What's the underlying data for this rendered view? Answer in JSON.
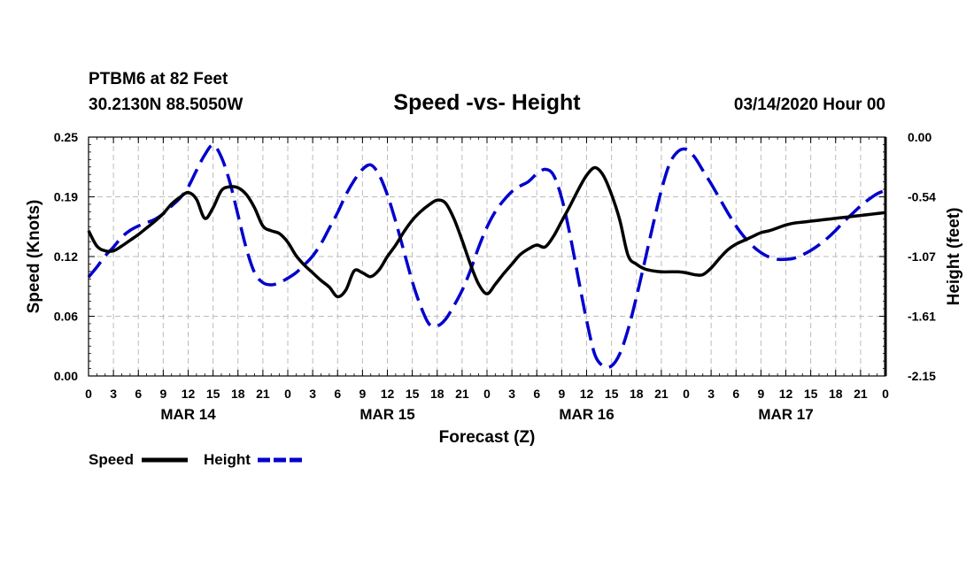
{
  "header": {
    "station": "PTBM6 at 82 Feet",
    "coords": "30.2130N 88.5050W",
    "title": "Speed -vs- Height",
    "datetime": "03/14/2020 Hour 00"
  },
  "chart_data": {
    "type": "line",
    "title": "Speed -vs- Height",
    "xlabel": "Forecast (Z)",
    "ylabel": "Speed (Knots)",
    "y2label": "Height (feet)",
    "x_ticks": [
      "0",
      "3",
      "6",
      "9",
      "12",
      "15",
      "18",
      "21",
      "0",
      "3",
      "6",
      "9",
      "12",
      "15",
      "18",
      "21",
      "0",
      "3",
      "6",
      "9",
      "12",
      "15",
      "18",
      "21",
      "0",
      "3",
      "6",
      "9",
      "12",
      "15",
      "18",
      "21",
      "0"
    ],
    "day_labels": [
      {
        "label": "MAR 14",
        "hour": 12
      },
      {
        "label": "MAR 15",
        "hour": 36
      },
      {
        "label": "MAR 16",
        "hour": 60
      },
      {
        "label": "MAR 17",
        "hour": 84
      }
    ],
    "xlim": [
      0,
      96
    ],
    "ylim": [
      0,
      0.25
    ],
    "y_ticks": [
      "0.00",
      "0.06",
      "0.12",
      "0.19",
      "0.25"
    ],
    "y2lim": [
      -2.15,
      0.0
    ],
    "y2_ticks": [
      "-2.15",
      "-1.61",
      "-1.07",
      "-0.54",
      "0.00"
    ],
    "grid": true,
    "legend": "bottom-left",
    "series": [
      {
        "name": "Speed",
        "axis": "left",
        "color": "#000000",
        "style": "solid",
        "x": [
          0,
          1,
          2,
          3,
          4,
          5,
          6,
          7,
          8,
          9,
          10,
          11,
          12,
          13,
          14,
          15,
          16,
          17,
          18,
          19,
          20,
          21,
          22,
          23,
          24,
          25,
          26,
          27,
          28,
          29,
          30,
          31,
          32,
          33,
          34,
          35,
          36,
          37,
          38,
          39,
          40,
          41,
          42,
          43,
          44,
          45,
          46,
          47,
          48,
          49,
          50,
          51,
          52,
          53,
          54,
          55,
          56,
          57,
          58,
          59,
          60,
          61,
          62,
          63,
          64,
          65,
          66,
          67,
          68,
          69,
          70,
          71,
          72,
          73,
          74,
          75,
          76,
          77,
          78,
          79,
          80,
          81,
          82,
          83,
          84,
          85,
          86,
          87,
          88,
          89,
          90,
          91,
          92,
          93,
          94,
          95,
          96
        ],
        "values": [
          0.152,
          0.136,
          0.131,
          0.131,
          0.136,
          0.142,
          0.148,
          0.155,
          0.162,
          0.17,
          0.18,
          0.187,
          0.192,
          0.185,
          0.165,
          0.176,
          0.194,
          0.198,
          0.197,
          0.19,
          0.176,
          0.157,
          0.152,
          0.149,
          0.14,
          0.126,
          0.116,
          0.108,
          0.1,
          0.093,
          0.083,
          0.09,
          0.11,
          0.108,
          0.104,
          0.111,
          0.125,
          0.137,
          0.151,
          0.163,
          0.172,
          0.179,
          0.184,
          0.181,
          0.165,
          0.142,
          0.117,
          0.096,
          0.086,
          0.096,
          0.107,
          0.117,
          0.127,
          0.133,
          0.137,
          0.135,
          0.146,
          0.162,
          0.178,
          0.195,
          0.21,
          0.218,
          0.21,
          0.19,
          0.163,
          0.126,
          0.117,
          0.112,
          0.11,
          0.109,
          0.109,
          0.109,
          0.108,
          0.106,
          0.106,
          0.113,
          0.123,
          0.132,
          0.138,
          0.142,
          0.146,
          0.15,
          0.152,
          0.155,
          0.158,
          0.16,
          0.161,
          0.162,
          0.163,
          0.164,
          0.165,
          0.166,
          0.167,
          0.168,
          0.169,
          0.17,
          0.171
        ]
      },
      {
        "name": "Height",
        "axis": "right",
        "color": "#0000cc",
        "style": "dashed",
        "x": [
          0,
          1,
          2,
          3,
          4,
          5,
          6,
          7,
          8,
          9,
          10,
          11,
          12,
          13,
          14,
          15,
          16,
          17,
          18,
          19,
          20,
          21,
          22,
          23,
          24,
          25,
          26,
          27,
          28,
          29,
          30,
          31,
          32,
          33,
          34,
          35,
          36,
          37,
          38,
          39,
          40,
          41,
          42,
          43,
          44,
          45,
          46,
          47,
          48,
          49,
          50,
          51,
          52,
          53,
          54,
          55,
          56,
          57,
          58,
          59,
          60,
          61,
          62,
          63,
          64,
          65,
          66,
          67,
          68,
          69,
          70,
          71,
          72,
          73,
          74,
          75,
          76,
          77,
          78,
          79,
          80,
          81,
          82,
          83,
          84,
          85,
          86,
          87,
          88,
          89,
          90,
          91,
          92,
          93,
          94,
          95,
          96
        ],
        "values": [
          -1.26,
          -1.17,
          -1.07,
          -0.99,
          -0.9,
          -0.84,
          -0.8,
          -0.77,
          -0.74,
          -0.69,
          -0.62,
          -0.55,
          -0.45,
          -0.3,
          -0.16,
          -0.07,
          -0.18,
          -0.4,
          -0.7,
          -1.0,
          -1.22,
          -1.31,
          -1.33,
          -1.31,
          -1.27,
          -1.22,
          -1.15,
          -1.07,
          -0.96,
          -0.82,
          -0.68,
          -0.52,
          -0.39,
          -0.29,
          -0.25,
          -0.34,
          -0.52,
          -0.76,
          -1.03,
          -1.3,
          -1.52,
          -1.68,
          -1.7,
          -1.64,
          -1.52,
          -1.38,
          -1.2,
          -0.99,
          -0.81,
          -0.67,
          -0.57,
          -0.49,
          -0.44,
          -0.4,
          -0.33,
          -0.29,
          -0.34,
          -0.55,
          -0.88,
          -1.27,
          -1.65,
          -1.96,
          -2.06,
          -2.06,
          -1.95,
          -1.73,
          -1.44,
          -1.12,
          -0.79,
          -0.48,
          -0.24,
          -0.13,
          -0.11,
          -0.18,
          -0.3,
          -0.42,
          -0.55,
          -0.68,
          -0.8,
          -0.9,
          -0.98,
          -1.04,
          -1.08,
          -1.1,
          -1.1,
          -1.09,
          -1.06,
          -1.02,
          -0.97,
          -0.91,
          -0.84,
          -0.76,
          -0.69,
          -0.62,
          -0.56,
          -0.51,
          -0.48
        ]
      }
    ]
  },
  "legend": {
    "speed_label": "Speed",
    "height_label": "Height"
  }
}
